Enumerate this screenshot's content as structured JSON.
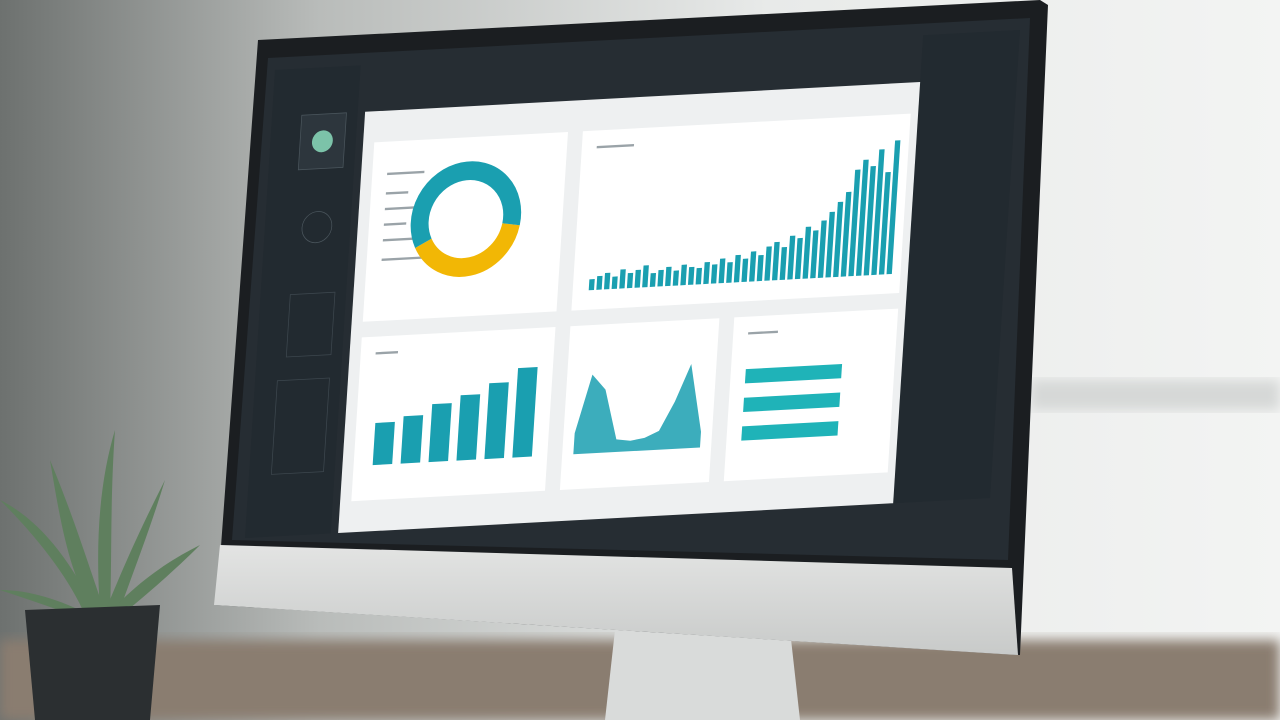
{
  "chart_data": [
    {
      "type": "pie",
      "values": [
        40,
        60
      ],
      "colors": [
        "#f2b705",
        "#1a9fb0"
      ]
    },
    {
      "type": "bar",
      "values": [
        8,
        10,
        12,
        9,
        14,
        11,
        13,
        16,
        10,
        12,
        14,
        11,
        15,
        13,
        12,
        16,
        14,
        18,
        15,
        20,
        17,
        22,
        19,
        25,
        28,
        24,
        32,
        30,
        38,
        35,
        42,
        48,
        55,
        62,
        78,
        85,
        80,
        92,
        75,
        98
      ],
      "color": "#1a9fb0",
      "ylim": [
        0,
        100
      ]
    },
    {
      "type": "bar",
      "values": [
        40,
        45,
        55,
        62,
        72,
        85
      ],
      "color": "#1a9fb0",
      "ylim": [
        0,
        100
      ]
    },
    {
      "type": "area",
      "values": [
        20,
        75,
        60,
        12,
        10,
        12,
        18,
        45,
        80,
        15
      ],
      "color": "#1a9fb0",
      "ylim": [
        0,
        100
      ]
    },
    {
      "type": "barh",
      "values": [
        68,
        68,
        68
      ],
      "color": "#1fb3b8",
      "xlim": [
        0,
        100
      ]
    }
  ]
}
